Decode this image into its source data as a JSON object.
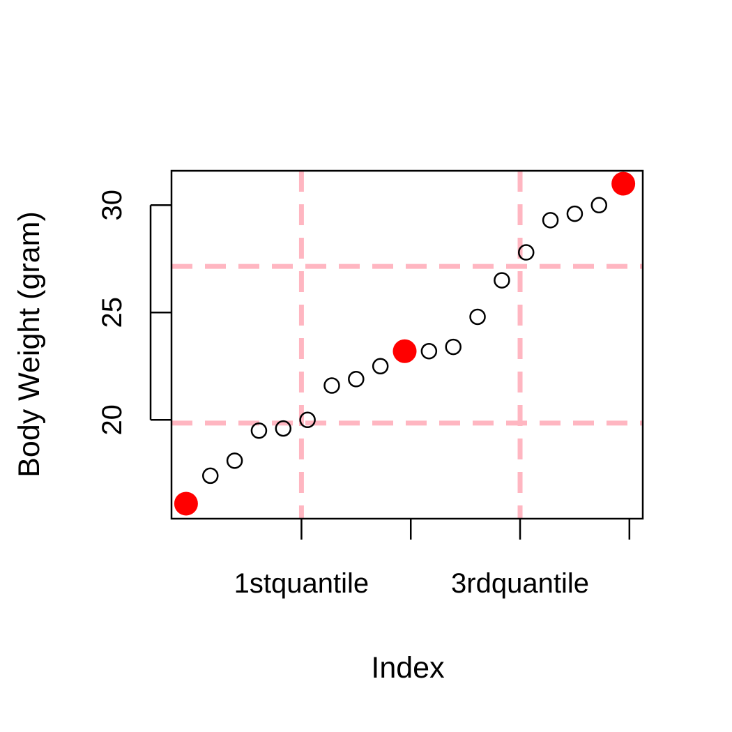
{
  "chart_data": {
    "type": "scatter",
    "title": "",
    "xlabel": "Index",
    "ylabel": "Body Weight (gram)",
    "xlim": [
      0.4,
      19.8
    ],
    "ylim": [
      15.4,
      31.6
    ],
    "x_ticks": [
      {
        "value": 5.75,
        "label": "1stquantile"
      },
      {
        "value": 10.25,
        "label": ""
      },
      {
        "value": 14.75,
        "label": "3rdquantile"
      },
      {
        "value": 19.25,
        "label": ""
      }
    ],
    "y_ticks": [
      {
        "value": 20,
        "label": "20"
      },
      {
        "value": 25,
        "label": "25"
      },
      {
        "value": 30,
        "label": "30"
      }
    ],
    "points": {
      "x": [
        1,
        2,
        3,
        4,
        5,
        6,
        7,
        8,
        9,
        10,
        11,
        12,
        13,
        14,
        15,
        16,
        17,
        18,
        19
      ],
      "y": [
        16.1,
        17.4,
        18.1,
        19.5,
        19.6,
        20.0,
        21.6,
        21.9,
        22.5,
        23.2,
        23.2,
        23.4,
        24.8,
        26.5,
        27.8,
        29.3,
        29.6,
        30.0,
        31.0
      ]
    },
    "highlighted_points": [
      {
        "x": 1,
        "y": 16.1
      },
      {
        "x": 10,
        "y": 23.2
      },
      {
        "x": 19,
        "y": 31.0
      }
    ],
    "vertical_reference_lines": [
      5.75,
      14.75
    ],
    "horizontal_reference_lines": [
      19.85,
      27.15
    ],
    "colors": {
      "point_outline": "#000000",
      "highlight": "#ff0000",
      "reference_line": "#ffb6c1"
    }
  }
}
